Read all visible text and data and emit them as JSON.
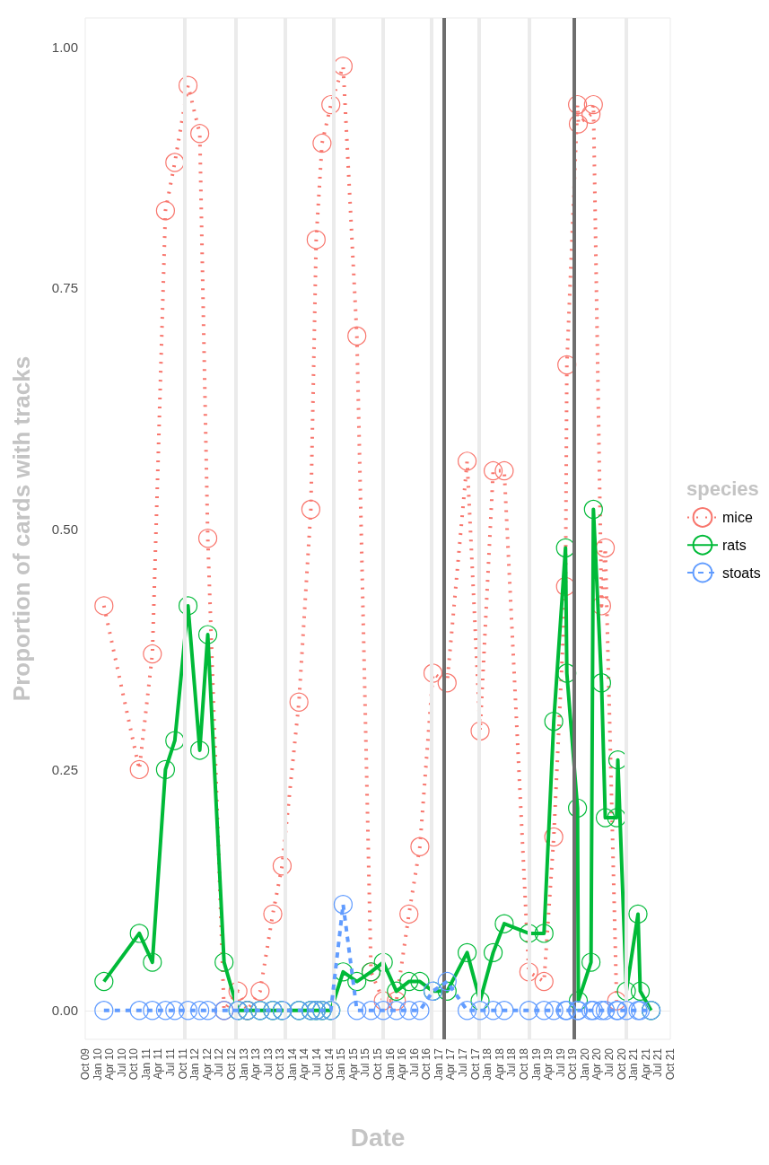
{
  "chart_data": {
    "type": "line",
    "xlabel": "Date",
    "ylabel": "Proportion of cards with tracks",
    "legend_title": "species",
    "legend": "right",
    "marker": "circle",
    "grid": false,
    "x": [
      "2010-02-18",
      "2010-11-10",
      "2011-02-16",
      "2011-05-25",
      "2011-08-03",
      "2011-11-10",
      "2012-02-06",
      "2012-04-06",
      "2012-08-06",
      "2012-11-18",
      "2013-01-28",
      "2013-05-03",
      "2013-08-06",
      "2013-10-15",
      "2014-02-18",
      "2014-05-18",
      "2014-06-27",
      "2014-08-10",
      "2014-10-15",
      "2015-01-15",
      "2015-04-28",
      "2015-08-12",
      "2015-11-12",
      "2016-02-18",
      "2016-05-22",
      "2016-08-12",
      "2016-11-18",
      "2017-03-04",
      "2017-08-01",
      "2017-11-06",
      "2018-02-12",
      "2018-05-06",
      "2018-11-06",
      "2019-02-28",
      "2019-05-12",
      "2019-08-08",
      "2019-08-18",
      "2019-11-06",
      "2019-11-12",
      "2020-02-15",
      "2020-03-04",
      "2020-05-04",
      "2020-06-01",
      "2020-08-25",
      "2020-09-03",
      "2020-11-06",
      "2021-02-01",
      "2021-02-18",
      "2021-05-10"
    ],
    "series": [
      {
        "name": "mice",
        "color": "#f8766d",
        "line_style": "dotted",
        "values": [
          0.42,
          0.25,
          0.37,
          0.83,
          0.88,
          0.96,
          0.91,
          0.49,
          0,
          0.02,
          0,
          0.02,
          0.1,
          0.15,
          0.32,
          0.52,
          0.8,
          0.9,
          0.94,
          0.98,
          0.7,
          0.04,
          0.01,
          0.01,
          0.1,
          0.17,
          0.35,
          0.34,
          0.57,
          0.29,
          0.56,
          0.56,
          0.04,
          0.03,
          0.18,
          0.44,
          0.67,
          0.94,
          0.92,
          0.93,
          0.94,
          0.42,
          0.48,
          0.01,
          null,
          null,
          null,
          null,
          null
        ]
      },
      {
        "name": "rats",
        "color": "#00ba38",
        "line_style": "solid",
        "values": [
          0.03,
          0.08,
          0.05,
          0.25,
          0.28,
          0.42,
          0.27,
          0.39,
          0.05,
          0,
          0,
          0,
          0,
          0,
          0,
          0,
          0,
          0,
          0,
          0.04,
          0.03,
          0.04,
          0.05,
          0.02,
          0.03,
          0.03,
          0.02,
          0.02,
          0.06,
          0.01,
          0.06,
          0.09,
          0.08,
          0.08,
          0.3,
          0.48,
          0.35,
          0.21,
          0.01,
          0.05,
          0.52,
          0.34,
          0.2,
          0.2,
          0.26,
          0.02,
          0.1,
          0.02,
          0
        ]
      },
      {
        "name": "stoats",
        "color": "#619cff",
        "line_style": "dashed",
        "values": [
          0,
          0,
          0,
          0,
          0,
          0,
          0,
          0,
          0,
          0,
          0,
          0,
          0,
          0,
          0,
          0,
          0,
          0,
          0,
          0.11,
          0,
          0,
          0,
          0,
          0,
          0,
          0.02,
          0.03,
          0,
          0,
          0,
          0,
          0,
          0,
          0,
          0,
          0,
          0,
          0,
          0,
          0,
          0,
          0,
          0,
          0,
          0,
          0,
          0,
          0
        ]
      }
    ],
    "ylim": [
      -0.03,
      1.03
    ],
    "yticks": [
      {
        "value": 0,
        "label": "0.00"
      },
      {
        "value": 0.25,
        "label": "0.25"
      },
      {
        "value": 0.5,
        "label": "0.50"
      },
      {
        "value": 0.75,
        "label": "0.75"
      },
      {
        "value": 1,
        "label": "1.00"
      }
    ],
    "xlim": [
      "2009-10-01",
      "2021-10-01"
    ],
    "xticks": [
      {
        "value": "2009-10-01",
        "label": "Oct 09"
      },
      {
        "value": "2010-01-01",
        "label": "Jan 10"
      },
      {
        "value": "2010-04-01",
        "label": "Apr 10"
      },
      {
        "value": "2010-07-01",
        "label": "Jul 10"
      },
      {
        "value": "2010-10-01",
        "label": "Oct 10"
      },
      {
        "value": "2011-01-01",
        "label": "Jan 11"
      },
      {
        "value": "2011-04-01",
        "label": "Apr 11"
      },
      {
        "value": "2011-07-01",
        "label": "Jul 11"
      },
      {
        "value": "2011-10-01",
        "label": "Oct 11"
      },
      {
        "value": "2012-01-01",
        "label": "Jan 12"
      },
      {
        "value": "2012-04-01",
        "label": "Apr 12"
      },
      {
        "value": "2012-07-01",
        "label": "Jul 12"
      },
      {
        "value": "2012-10-01",
        "label": "Oct 12"
      },
      {
        "value": "2013-01-01",
        "label": "Jan 13"
      },
      {
        "value": "2013-04-01",
        "label": "Apr 13"
      },
      {
        "value": "2013-07-01",
        "label": "Jul 13"
      },
      {
        "value": "2013-10-01",
        "label": "Oct 13"
      },
      {
        "value": "2014-01-01",
        "label": "Jan 14"
      },
      {
        "value": "2014-04-01",
        "label": "Apr 14"
      },
      {
        "value": "2014-07-01",
        "label": "Jul 14"
      },
      {
        "value": "2014-10-01",
        "label": "Oct 14"
      },
      {
        "value": "2015-01-01",
        "label": "Jan 15"
      },
      {
        "value": "2015-04-01",
        "label": "Apr 15"
      },
      {
        "value": "2015-07-01",
        "label": "Jul 15"
      },
      {
        "value": "2015-10-01",
        "label": "Oct 15"
      },
      {
        "value": "2016-01-01",
        "label": "Jan 16"
      },
      {
        "value": "2016-04-01",
        "label": "Apr 16"
      },
      {
        "value": "2016-07-01",
        "label": "Jul 16"
      },
      {
        "value": "2016-10-01",
        "label": "Oct 16"
      },
      {
        "value": "2017-01-01",
        "label": "Jan 17"
      },
      {
        "value": "2017-04-01",
        "label": "Apr 17"
      },
      {
        "value": "2017-07-01",
        "label": "Jul 17"
      },
      {
        "value": "2017-10-01",
        "label": "Oct 17"
      },
      {
        "value": "2018-01-01",
        "label": "Jan 18"
      },
      {
        "value": "2018-04-01",
        "label": "Apr 18"
      },
      {
        "value": "2018-07-01",
        "label": "Jul 18"
      },
      {
        "value": "2018-10-01",
        "label": "Oct 18"
      },
      {
        "value": "2019-01-01",
        "label": "Jan 19"
      },
      {
        "value": "2019-04-01",
        "label": "Apr 19"
      },
      {
        "value": "2019-07-01",
        "label": "Jul 19"
      },
      {
        "value": "2019-10-01",
        "label": "Oct 19"
      },
      {
        "value": "2020-01-01",
        "label": "Jan 20"
      },
      {
        "value": "2020-04-01",
        "label": "Apr 20"
      },
      {
        "value": "2020-07-01",
        "label": "Jul 20"
      },
      {
        "value": "2020-10-01",
        "label": "Oct 20"
      },
      {
        "value": "2021-01-01",
        "label": "Jan 21"
      },
      {
        "value": "2021-04-01",
        "label": "Apr 21"
      },
      {
        "value": "2021-07-01",
        "label": "Jul 21"
      },
      {
        "value": "2021-10-01",
        "label": "Oct 21"
      }
    ],
    "ref_lines": [
      {
        "axis": "x",
        "value": "2011-10-15",
        "color": "#ebebeb"
      },
      {
        "axis": "x",
        "value": "2012-11-01",
        "color": "#ebebeb"
      },
      {
        "axis": "x",
        "value": "2013-11-05",
        "color": "#ebebeb"
      },
      {
        "axis": "x",
        "value": "2014-11-05",
        "color": "#ebebeb"
      },
      {
        "axis": "x",
        "value": "2015-11-10",
        "color": "#ebebeb"
      },
      {
        "axis": "x",
        "value": "2016-11-05",
        "color": "#ebebeb"
      },
      {
        "axis": "x",
        "value": "2017-10-28",
        "color": "#ebebeb"
      },
      {
        "axis": "x",
        "value": "2018-11-10",
        "color": "#ebebeb"
      },
      {
        "axis": "x",
        "value": "2020-11-05",
        "color": "#ebebeb"
      },
      {
        "axis": "x",
        "value": "2017-02-08",
        "color": "#6e6e6e"
      },
      {
        "axis": "x",
        "value": "2019-10-12",
        "color": "#6e6e6e"
      }
    ]
  }
}
